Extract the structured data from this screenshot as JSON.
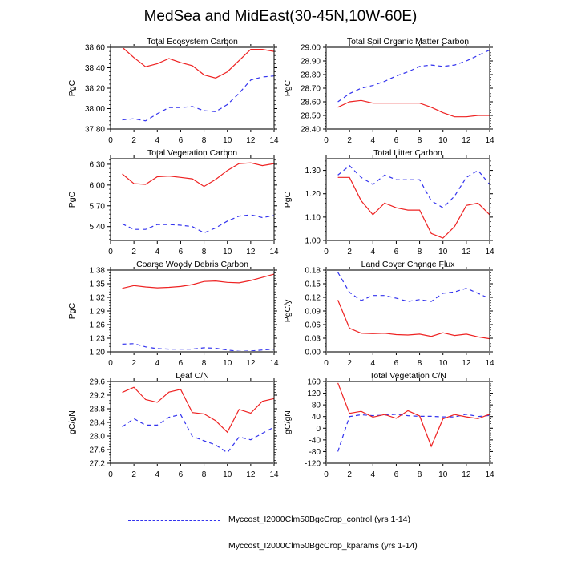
{
  "title": "MedSea and MidEast(30-45N,10W-60E)",
  "colors": {
    "control": "#3333ee",
    "kparams": "#ee2222",
    "axis": "#000000"
  },
  "legend": [
    {
      "name": "Myccost_I2000Clm50BgcCrop_control (yrs 1-14)",
      "style": "dashed",
      "color": "#3333ee"
    },
    {
      "name": "Myccost_I2000Clm50BgcCrop_kparams (yrs 1-14)",
      "style": "solid",
      "color": "#ee2222"
    }
  ],
  "chart_data": [
    {
      "type": "line",
      "title": "Total Ecosystem Carbon",
      "ylabel": "PgC",
      "xlabel": "",
      "xlim": [
        0,
        14
      ],
      "xticks": [
        "0",
        "2",
        "4",
        "6",
        "8",
        "10",
        "12",
        "14"
      ],
      "ylim": [
        37.8,
        38.6
      ],
      "yticks": [
        "37.80",
        "38.00",
        "38.20",
        "38.40",
        "38.60"
      ],
      "x": [
        1,
        2,
        3,
        4,
        5,
        6,
        7,
        8,
        9,
        10,
        11,
        12,
        13,
        14
      ],
      "series": [
        {
          "name": "control",
          "values": [
            37.89,
            37.9,
            37.88,
            37.95,
            38.01,
            38.01,
            38.02,
            37.98,
            37.97,
            38.04,
            38.15,
            38.28,
            38.31,
            38.32
          ]
        },
        {
          "name": "kparams",
          "values": [
            38.6,
            38.5,
            38.41,
            38.44,
            38.49,
            38.45,
            38.42,
            38.33,
            38.3,
            38.36,
            38.47,
            38.58,
            38.58,
            38.56
          ]
        }
      ]
    },
    {
      "type": "line",
      "title": "Total Soil Organic Matter Carbon",
      "ylabel": "PgC",
      "xlabel": "",
      "xlim": [
        0,
        14
      ],
      "xticks": [
        "0",
        "2",
        "4",
        "6",
        "8",
        "10",
        "12",
        "14"
      ],
      "ylim": [
        28.4,
        29.0
      ],
      "yticks": [
        "28.40",
        "28.50",
        "28.60",
        "28.70",
        "28.80",
        "28.90",
        "29.00"
      ],
      "x": [
        1,
        2,
        3,
        4,
        5,
        6,
        7,
        8,
        9,
        10,
        11,
        12,
        13,
        14
      ],
      "series": [
        {
          "name": "control",
          "values": [
            28.6,
            28.66,
            28.7,
            28.72,
            28.75,
            28.79,
            28.82,
            28.86,
            28.87,
            28.86,
            28.87,
            28.9,
            28.94,
            28.98
          ]
        },
        {
          "name": "kparams",
          "values": [
            28.56,
            28.6,
            28.61,
            28.59,
            28.59,
            28.59,
            28.59,
            28.59,
            28.56,
            28.52,
            28.49,
            28.49,
            28.5,
            28.5
          ]
        }
      ]
    },
    {
      "type": "line",
      "title": "Total Vegetation Carbon",
      "ylabel": "PgC",
      "xlabel": "",
      "xlim": [
        0,
        14
      ],
      "xticks": [
        "0",
        "2",
        "4",
        "6",
        "8",
        "10",
        "12",
        "14"
      ],
      "ylim": [
        5.2,
        6.38
      ],
      "yticks": [
        "5.40",
        "5.70",
        "6.00",
        "6.30"
      ],
      "x": [
        1,
        2,
        3,
        4,
        5,
        6,
        7,
        8,
        9,
        10,
        11,
        12,
        13,
        14
      ],
      "series": [
        {
          "name": "control",
          "values": [
            5.44,
            5.36,
            5.36,
            5.43,
            5.43,
            5.42,
            5.4,
            5.31,
            5.38,
            5.48,
            5.55,
            5.57,
            5.53,
            5.56
          ]
        },
        {
          "name": "kparams",
          "values": [
            6.16,
            6.02,
            6.01,
            6.12,
            6.13,
            6.11,
            6.09,
            5.98,
            6.08,
            6.21,
            6.31,
            6.32,
            6.28,
            6.31
          ]
        }
      ]
    },
    {
      "type": "line",
      "title": "Total Litter Carbon",
      "ylabel": "PgC",
      "xlabel": "",
      "xlim": [
        0,
        14
      ],
      "xticks": [
        "0",
        "2",
        "4",
        "6",
        "8",
        "10",
        "12",
        "14"
      ],
      "ylim": [
        1.0,
        1.35
      ],
      "yticks": [
        "1.00",
        "1.10",
        "1.20",
        "1.30"
      ],
      "x": [
        1,
        2,
        3,
        4,
        5,
        6,
        7,
        8,
        9,
        10,
        11,
        12,
        13,
        14
      ],
      "series": [
        {
          "name": "control",
          "values": [
            1.28,
            1.32,
            1.27,
            1.24,
            1.28,
            1.26,
            1.26,
            1.26,
            1.17,
            1.14,
            1.19,
            1.27,
            1.3,
            1.24
          ]
        },
        {
          "name": "kparams",
          "values": [
            1.27,
            1.27,
            1.17,
            1.11,
            1.16,
            1.14,
            1.13,
            1.13,
            1.03,
            1.01,
            1.06,
            1.15,
            1.16,
            1.11
          ]
        }
      ]
    },
    {
      "type": "line",
      "title": "Coarse Woody Debris Carbon",
      "ylabel": "PgC",
      "xlabel": "",
      "xlim": [
        0,
        14
      ],
      "xticks": [
        "0",
        "2",
        "4",
        "6",
        "8",
        "10",
        "12",
        "14"
      ],
      "ylim": [
        1.2,
        1.38
      ],
      "yticks": [
        "1.20",
        "1.23",
        "1.26",
        "1.29",
        "1.32",
        "1.35",
        "1.38"
      ],
      "x": [
        1,
        2,
        3,
        4,
        5,
        6,
        7,
        8,
        9,
        10,
        11,
        12,
        13,
        14
      ],
      "series": [
        {
          "name": "control",
          "values": [
            1.217,
            1.218,
            1.211,
            1.207,
            1.206,
            1.206,
            1.206,
            1.209,
            1.208,
            1.204,
            1.201,
            1.202,
            1.204,
            1.206
          ]
        },
        {
          "name": "kparams",
          "values": [
            1.34,
            1.346,
            1.343,
            1.341,
            1.342,
            1.344,
            1.348,
            1.355,
            1.356,
            1.353,
            1.352,
            1.357,
            1.364,
            1.371
          ]
        }
      ]
    },
    {
      "type": "line",
      "title": "Land Cover Change Flux",
      "ylabel": "PgC/y",
      "xlabel": "",
      "xlim": [
        0,
        14
      ],
      "xticks": [
        "0",
        "2",
        "4",
        "6",
        "8",
        "10",
        "12",
        "14"
      ],
      "ylim": [
        0.0,
        0.18
      ],
      "yticks": [
        "0.00",
        "0.03",
        "0.06",
        "0.09",
        "0.12",
        "0.15",
        "0.18"
      ],
      "x": [
        1,
        2,
        3,
        4,
        5,
        6,
        7,
        8,
        9,
        10,
        11,
        12,
        13,
        14
      ],
      "series": [
        {
          "name": "control",
          "values": [
            0.175,
            0.131,
            0.113,
            0.124,
            0.124,
            0.118,
            0.111,
            0.115,
            0.111,
            0.129,
            0.132,
            0.14,
            0.129,
            0.117
          ]
        },
        {
          "name": "kparams",
          "values": [
            0.114,
            0.052,
            0.041,
            0.04,
            0.041,
            0.038,
            0.037,
            0.039,
            0.034,
            0.042,
            0.036,
            0.039,
            0.033,
            0.029
          ]
        }
      ]
    },
    {
      "type": "line",
      "title": "Leaf C/N",
      "ylabel": "gC/gN",
      "xlabel": "",
      "xlim": [
        0,
        14
      ],
      "xticks": [
        "0",
        "2",
        "4",
        "6",
        "8",
        "10",
        "12",
        "14"
      ],
      "ylim": [
        27.2,
        29.6
      ],
      "yticks": [
        "27.2",
        "27.6",
        "28.0",
        "28.4",
        "28.8",
        "29.2",
        "29.6"
      ],
      "x": [
        1,
        2,
        3,
        4,
        5,
        6,
        7,
        8,
        9,
        10,
        11,
        12,
        13,
        14
      ],
      "series": [
        {
          "name": "control",
          "values": [
            28.27,
            28.51,
            28.32,
            28.32,
            28.55,
            28.63,
            27.99,
            27.86,
            27.74,
            27.51,
            27.97,
            27.89,
            28.08,
            28.26
          ]
        },
        {
          "name": "kparams",
          "values": [
            29.28,
            29.43,
            29.07,
            28.99,
            29.29,
            29.37,
            28.69,
            28.65,
            28.45,
            28.11,
            28.78,
            28.67,
            29.02,
            29.1
          ]
        }
      ]
    },
    {
      "type": "line",
      "title": "Total Vegetation C/N",
      "ylabel": "gC/gN",
      "xlabel": "",
      "xlim": [
        0,
        14
      ],
      "xticks": [
        "0",
        "2",
        "4",
        "6",
        "8",
        "10",
        "12",
        "14"
      ],
      "ylim": [
        -120,
        160
      ],
      "yticks": [
        "-120",
        "-80",
        "-40",
        "0",
        "40",
        "80",
        "120",
        "160"
      ],
      "x": [
        1,
        2,
        3,
        4,
        5,
        6,
        7,
        8,
        9,
        10,
        11,
        12,
        13,
        14
      ],
      "series": [
        {
          "name": "control",
          "values": [
            -80,
            40,
            46,
            43,
            45,
            48,
            43,
            41,
            41,
            39,
            39,
            48,
            40,
            44
          ]
        },
        {
          "name": "kparams",
          "values": [
            155,
            51,
            58,
            38,
            47,
            34,
            60,
            42,
            -62,
            32,
            47,
            39,
            33,
            48
          ]
        }
      ]
    }
  ]
}
